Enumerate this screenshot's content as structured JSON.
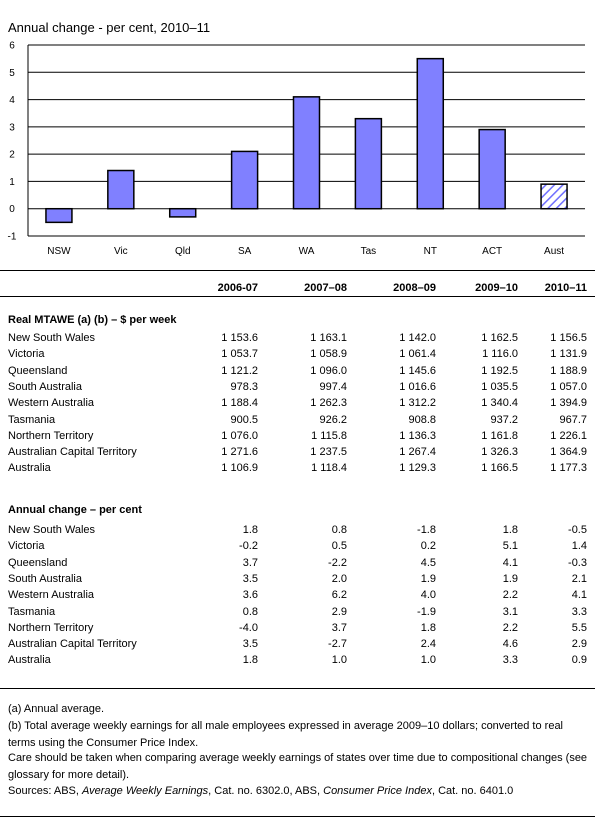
{
  "chart_data": {
    "type": "bar",
    "title": "Annual change - per cent, 2010–11",
    "categories": [
      "NSW",
      "Vic",
      "Qld",
      "SA",
      "WA",
      "Tas",
      "NT",
      "ACT",
      "Aust"
    ],
    "values": [
      -0.5,
      1.4,
      -0.3,
      2.1,
      4.1,
      3.3,
      5.5,
      2.9,
      0.9
    ],
    "ylim": [
      -1,
      6
    ],
    "yticks": [
      "-1",
      "0",
      "1",
      "2",
      "3",
      "4",
      "5",
      "6"
    ],
    "grid": true,
    "bar_color": "#8080ff",
    "highlight_category": "Aust",
    "highlight_style": "hatched"
  },
  "table": {
    "columns": [
      "2006-07",
      "2007–08",
      "2008–09",
      "2009–10",
      "2010–11"
    ],
    "sections": [
      {
        "title": "Real MTAWE (a) (b) – $ per week",
        "rows": [
          {
            "label": "New South Wales",
            "values": [
              "1 153.6",
              "1 163.1",
              "1 142.0",
              "1 162.5",
              "1 156.5"
            ]
          },
          {
            "label": "Victoria",
            "values": [
              "1 053.7",
              "1 058.9",
              "1 061.4",
              "1 116.0",
              "1 131.9"
            ]
          },
          {
            "label": "Queensland",
            "values": [
              "1 121.2",
              "1 096.0",
              "1 145.6",
              "1 192.5",
              "1 188.9"
            ]
          },
          {
            "label": "South Australia",
            "values": [
              "978.3",
              "997.4",
              "1 016.6",
              "1 035.5",
              "1 057.0"
            ]
          },
          {
            "label": "Western Australia",
            "values": [
              "1 188.4",
              "1 262.3",
              "1 312.2",
              "1 340.4",
              "1 394.9"
            ]
          },
          {
            "label": "Tasmania",
            "values": [
              "900.5",
              "926.2",
              "908.8",
              "937.2",
              "967.7"
            ]
          },
          {
            "label": "Northern Territory",
            "values": [
              "1 076.0",
              "1 115.8",
              "1 136.3",
              "1 161.8",
              "1 226.1"
            ]
          },
          {
            "label": "Australian Capital Territory",
            "values": [
              "1 271.6",
              "1 237.5",
              "1 267.4",
              "1 326.3",
              "1 364.9"
            ]
          },
          {
            "label": "Australia",
            "values": [
              "1 106.9",
              "1 118.4",
              "1 129.3",
              "1 166.5",
              "1 177.3"
            ]
          }
        ]
      },
      {
        "title": "Annual change – per cent",
        "rows": [
          {
            "label": "New South Wales",
            "values": [
              "1.8",
              "0.8",
              "-1.8",
              "1.8",
              "-0.5"
            ]
          },
          {
            "label": "Victoria",
            "values": [
              "-0.2",
              "0.5",
              "0.2",
              "5.1",
              "1.4"
            ]
          },
          {
            "label": "Queensland",
            "values": [
              "3.7",
              "-2.2",
              "4.5",
              "4.1",
              "-0.3"
            ]
          },
          {
            "label": "South Australia",
            "values": [
              "3.5",
              "2.0",
              "1.9",
              "1.9",
              "2.1"
            ]
          },
          {
            "label": "Western Australia",
            "values": [
              "3.6",
              "6.2",
              "4.0",
              "2.2",
              "4.1"
            ]
          },
          {
            "label": "Tasmania",
            "values": [
              "0.8",
              "2.9",
              "-1.9",
              "3.1",
              "3.3"
            ]
          },
          {
            "label": "Northern Territory",
            "values": [
              "-4.0",
              "3.7",
              "1.8",
              "2.2",
              "5.5"
            ]
          },
          {
            "label": "Australian Capital Territory",
            "values": [
              "3.5",
              "-2.7",
              "2.4",
              "4.6",
              "2.9"
            ]
          },
          {
            "label": "Australia",
            "values": [
              "1.8",
              "1.0",
              "1.0",
              "3.3",
              "0.9"
            ]
          }
        ]
      }
    ]
  },
  "notes": {
    "a": "(a) Annual average.",
    "b": "(b) Total average weekly earnings for all male employees expressed in average 2009–10 dollars; converted to real terms using the Consumer Price Index.",
    "care": "Care should be taken when comparing average weekly earnings of states over time due to compositional changes (see glossary for more detail).",
    "sources_prefix": "Sources: ABS, ",
    "source1_title": "Average Weekly Earnings",
    "source1_cat": ", Cat. no. 6302.0,  ABS, ",
    "source2_title": "Consumer Price Index",
    "source2_cat": ", Cat. no. 6401.0"
  }
}
